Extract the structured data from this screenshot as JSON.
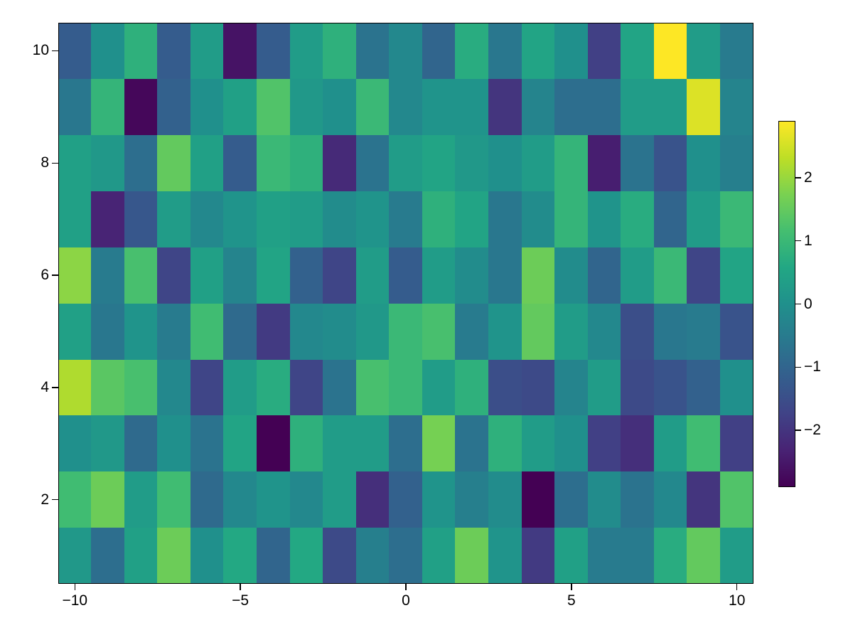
{
  "chart_data": {
    "type": "heatmap",
    "title": "",
    "xlabel": "",
    "ylabel": "",
    "colormap": "viridis",
    "x": [
      -10,
      -9,
      -8,
      -7,
      -6,
      -5,
      -4,
      -3,
      -2,
      -1,
      0,
      1,
      2,
      3,
      4,
      5,
      6,
      7,
      8,
      9,
      10
    ],
    "y": [
      1,
      2,
      3,
      4,
      5,
      6,
      7,
      8,
      9,
      10
    ],
    "xlim": [
      -10.5,
      10.5
    ],
    "ylim": [
      0.5,
      10.5
    ],
    "x_ticks": [
      -10,
      -5,
      0,
      5,
      10
    ],
    "x_tick_labels": [
      "−10",
      "−5",
      "0",
      "5",
      "10"
    ],
    "y_ticks": [
      2,
      4,
      6,
      8,
      10
    ],
    "y_tick_labels": [
      "2",
      "4",
      "6",
      "8",
      "10"
    ],
    "grid": false,
    "colorbar": {
      "range": [
        -2.9,
        2.9
      ],
      "ticks": [
        -2,
        -1,
        0,
        1,
        2
      ],
      "tick_labels": [
        "−2",
        "−1",
        "0",
        "1",
        "2"
      ],
      "position": "right"
    },
    "values_by_row_y_1_to_10": [
      [
        0.2,
        -0.8,
        0.4,
        1.6,
        0.0,
        0.6,
        -1.0,
        0.6,
        -1.6,
        -0.4,
        -0.8,
        0.4,
        1.6,
        0.1,
        -1.9,
        0.4,
        -0.5,
        -0.5,
        0.7,
        1.5,
        0.3
      ],
      [
        1.1,
        1.6,
        0.3,
        1.1,
        -0.9,
        -0.2,
        0.1,
        -0.2,
        0.3,
        -2.1,
        -1.1,
        0.1,
        -0.4,
        -0.1,
        -2.9,
        -0.8,
        -0.1,
        -0.7,
        -0.2,
        -2.0,
        1.3
      ],
      [
        0.0,
        0.2,
        -0.9,
        0.0,
        -0.7,
        0.5,
        -2.9,
        0.8,
        0.3,
        0.3,
        -0.8,
        1.7,
        -0.7,
        0.8,
        0.3,
        0.0,
        -1.8,
        -2.1,
        0.3,
        1.1,
        -1.8
      ],
      [
        2.2,
        1.4,
        1.2,
        -0.2,
        -1.7,
        0.3,
        0.7,
        -1.7,
        -0.7,
        1.2,
        1.0,
        0.3,
        0.8,
        -1.5,
        -1.6,
        -0.3,
        0.3,
        -1.6,
        -1.4,
        -1.1,
        0.0
      ],
      [
        0.4,
        -0.6,
        0.1,
        -0.5,
        1.1,
        -0.9,
        -1.9,
        -0.2,
        -0.1,
        0.2,
        1.0,
        1.2,
        -0.5,
        0.1,
        1.5,
        0.3,
        -0.2,
        -1.5,
        -0.6,
        -0.5,
        -1.4
      ],
      [
        1.9,
        -0.5,
        1.2,
        -1.7,
        0.4,
        -0.3,
        0.5,
        -1.1,
        -1.7,
        0.3,
        -1.2,
        0.3,
        -0.1,
        -0.6,
        1.6,
        -0.1,
        -1.0,
        0.3,
        1.0,
        -1.7,
        0.5
      ],
      [
        0.4,
        -2.3,
        -1.3,
        0.3,
        -0.2,
        0.1,
        0.4,
        0.3,
        -0.1,
        0.1,
        -0.5,
        0.8,
        0.5,
        -0.6,
        -0.1,
        0.9,
        0.1,
        0.7,
        -1.0,
        0.3,
        1.0
      ],
      [
        0.4,
        0.2,
        -0.8,
        1.5,
        0.4,
        -1.2,
        1.0,
        0.8,
        -2.2,
        -0.7,
        0.3,
        0.5,
        0.2,
        0.0,
        0.3,
        0.9,
        -2.4,
        -0.7,
        -1.4,
        0.0,
        -0.4
      ],
      [
        -0.6,
        0.9,
        -2.8,
        -1.1,
        0.0,
        0.4,
        1.3,
        0.2,
        0.0,
        1.0,
        -0.2,
        0.1,
        0.1,
        -2.0,
        -0.3,
        -0.8,
        -0.8,
        0.3,
        0.3,
        2.6,
        -0.3
      ],
      [
        -1.2,
        0.0,
        0.8,
        -1.2,
        0.3,
        -2.6,
        -1.2,
        0.3,
        0.8,
        -0.7,
        -0.2,
        -1.0,
        0.7,
        -0.6,
        0.5,
        0.0,
        -1.8,
        0.5,
        2.9,
        0.3,
        -0.5
      ]
    ]
  }
}
